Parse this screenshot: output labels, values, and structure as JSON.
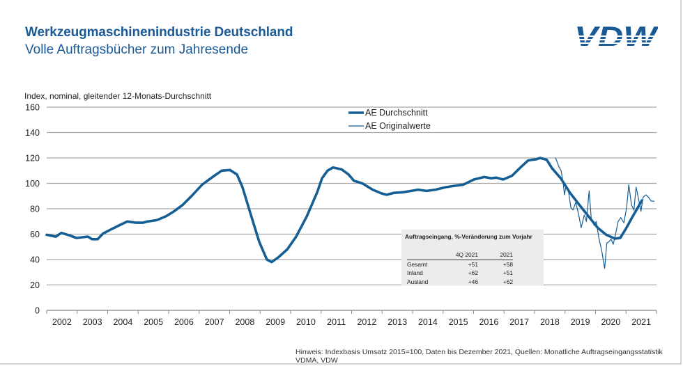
{
  "header": {
    "title": "Werkzeugmaschinenindustrie Deutschland",
    "subtitle": "Volle Auftragsbücher zum Jahresende",
    "logo_text": "VDW"
  },
  "footer": {
    "note": "Hinweis: Indexbasis Umsatz 2015=100, Daten bis Dezember 2021, Quellen: Monatliche Auftragseingangsstatistik VDMA, VDW"
  },
  "colors": {
    "brand": "#1a5a96",
    "series": "#155e94",
    "grid": "#a6a6a6",
    "inset_bg": "#ececec"
  },
  "inset_table": {
    "title": "Auftragseingang, %-Veränderung zum Vorjahr",
    "columns": [
      "",
      "4Q 2021",
      "2021"
    ],
    "rows": [
      {
        "label": "Gesamt",
        "q4": "+51",
        "year": "+58"
      },
      {
        "label": "Inland",
        "q4": "+62",
        "year": "+51"
      },
      {
        "label": "Ausland",
        "q4": "+46",
        "year": "+62"
      }
    ]
  },
  "chart_data": {
    "type": "line",
    "title": "Werkzeugmaschinenindustrie Deutschland",
    "subtitle": "Volle Auftragsbücher zum Jahresende",
    "ylabel": "Index, nominal, gleitender 12-Monats-Durchschnitt",
    "xlabel": "",
    "ylim": [
      0,
      160
    ],
    "yticks": [
      0,
      20,
      40,
      60,
      80,
      100,
      120,
      140,
      160
    ],
    "xlim": [
      2002,
      2022
    ],
    "xtick_labels": [
      "2002",
      "2003",
      "2004",
      "2005",
      "2006",
      "2007",
      "2008",
      "2009",
      "2010",
      "2011",
      "2012",
      "2013",
      "2014",
      "2015",
      "2016",
      "2017",
      "2018",
      "2019",
      "2020",
      "2021"
    ],
    "grid": true,
    "legend_position": "top-center",
    "series": [
      {
        "name": "AE Durchschnitt",
        "style": "thick",
        "x": [
          2002.0,
          2002.3,
          2002.48,
          2002.75,
          2002.98,
          2003.35,
          2003.49,
          2003.67,
          2003.85,
          2004.13,
          2004.47,
          2004.65,
          2004.93,
          2005.15,
          2005.31,
          2005.61,
          2005.91,
          2006.18,
          2006.46,
          2006.75,
          2007.1,
          2007.44,
          2007.74,
          2008.01,
          2008.24,
          2008.42,
          2008.7,
          2008.97,
          2009.22,
          2009.38,
          2009.61,
          2009.89,
          2010.18,
          2010.53,
          2010.87,
          2011.03,
          2011.21,
          2011.39,
          2011.67,
          2011.9,
          2012.08,
          2012.35,
          2012.69,
          2012.99,
          2013.15,
          2013.38,
          2013.68,
          2013.95,
          2014.18,
          2014.46,
          2014.75,
          2015.09,
          2015.37,
          2015.67,
          2016.01,
          2016.35,
          2016.58,
          2016.74,
          2016.97,
          2017.26,
          2017.56,
          2017.79,
          2018.06,
          2018.18,
          2018.4,
          2018.57,
          2018.86,
          2019.15,
          2019.47,
          2019.77,
          2020.07,
          2020.35,
          2020.63,
          2020.81,
          2020.99,
          2021.22,
          2021.52
        ],
        "values": [
          59.5,
          58,
          61,
          59,
          57,
          58,
          56,
          56,
          60.5,
          64,
          68,
          70,
          69,
          69,
          70,
          71,
          74,
          78,
          83,
          90,
          99,
          105,
          110,
          110.5,
          107,
          97,
          75,
          54,
          40,
          38,
          42,
          48,
          58,
          74,
          93,
          104,
          110,
          112.5,
          111,
          107,
          102,
          100,
          95,
          92,
          91,
          92.5,
          93,
          94,
          95,
          94,
          95,
          97,
          98,
          99,
          103,
          105,
          104,
          104.5,
          103,
          106,
          113,
          118,
          119,
          120,
          118.5,
          112,
          104,
          93,
          83,
          74,
          65,
          59.5,
          56.5,
          57,
          64,
          74,
          86.5
        ]
      },
      {
        "name": "AE Originalwerte",
        "style": "thin",
        "x": [
          2018.69,
          2018.8,
          2018.87,
          2018.94,
          2018.98,
          2019.03,
          2019.1,
          2019.19,
          2019.26,
          2019.35,
          2019.44,
          2019.53,
          2019.63,
          2019.7,
          2019.79,
          2019.86,
          2019.95,
          2020.02,
          2020.11,
          2020.21,
          2020.3,
          2020.37,
          2020.44,
          2020.51,
          2020.58,
          2020.65,
          2020.74,
          2020.83,
          2020.93,
          2021.02,
          2021.09,
          2021.18,
          2021.26,
          2021.33,
          2021.4,
          2021.49,
          2021.56,
          2021.65,
          2021.74,
          2021.83,
          2021.92
        ],
        "values": [
          120,
          113,
          110,
          100,
          91,
          98,
          96,
          81,
          79,
          85,
          76,
          65,
          75,
          70,
          94,
          72,
          67,
          70,
          57,
          46,
          33,
          53,
          54,
          56,
          52,
          59,
          70,
          73,
          69,
          81,
          99,
          83,
          79,
          97,
          89,
          78,
          89,
          91,
          89,
          86,
          86
        ]
      }
    ]
  }
}
